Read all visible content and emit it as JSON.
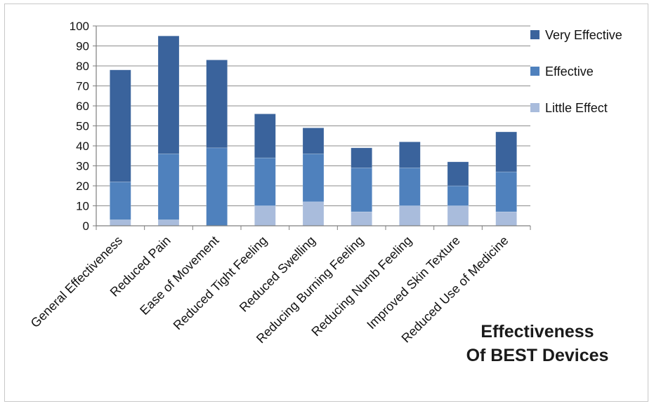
{
  "chart_data": {
    "type": "bar",
    "stacked": true,
    "title_lines": [
      "Effectiveness",
      "Of BEST Devices"
    ],
    "xlabel": "",
    "ylabel": "",
    "ylim": [
      0,
      100
    ],
    "yticks": [
      0,
      10,
      20,
      30,
      40,
      50,
      60,
      70,
      80,
      90,
      100
    ],
    "grid": true,
    "legend_position": "right",
    "categories": [
      "General Effectiveness",
      "Reduced Pain",
      "Ease of Movement",
      "Reduced Tight Feeling",
      "Reduced Swelling",
      "Reducing Burning Feeling",
      "Reducing Numb Feeling",
      "Improved Skin Texture",
      "Reduced Use of Medicine"
    ],
    "series": [
      {
        "name": "Little Effect",
        "color": "#a9bcdc",
        "values": [
          3,
          3,
          0,
          10,
          12,
          7,
          10,
          10,
          7
        ]
      },
      {
        "name": "Effective",
        "color": "#4f81bd",
        "values": [
          19,
          33,
          39,
          24,
          24,
          22,
          19,
          10,
          20
        ]
      },
      {
        "name": "Very Effective",
        "color": "#3a639c",
        "values": [
          56,
          59,
          44,
          22,
          13,
          10,
          13,
          12,
          20
        ]
      }
    ],
    "legend_order": [
      "Very Effective",
      "Effective",
      "Little Effect"
    ]
  }
}
